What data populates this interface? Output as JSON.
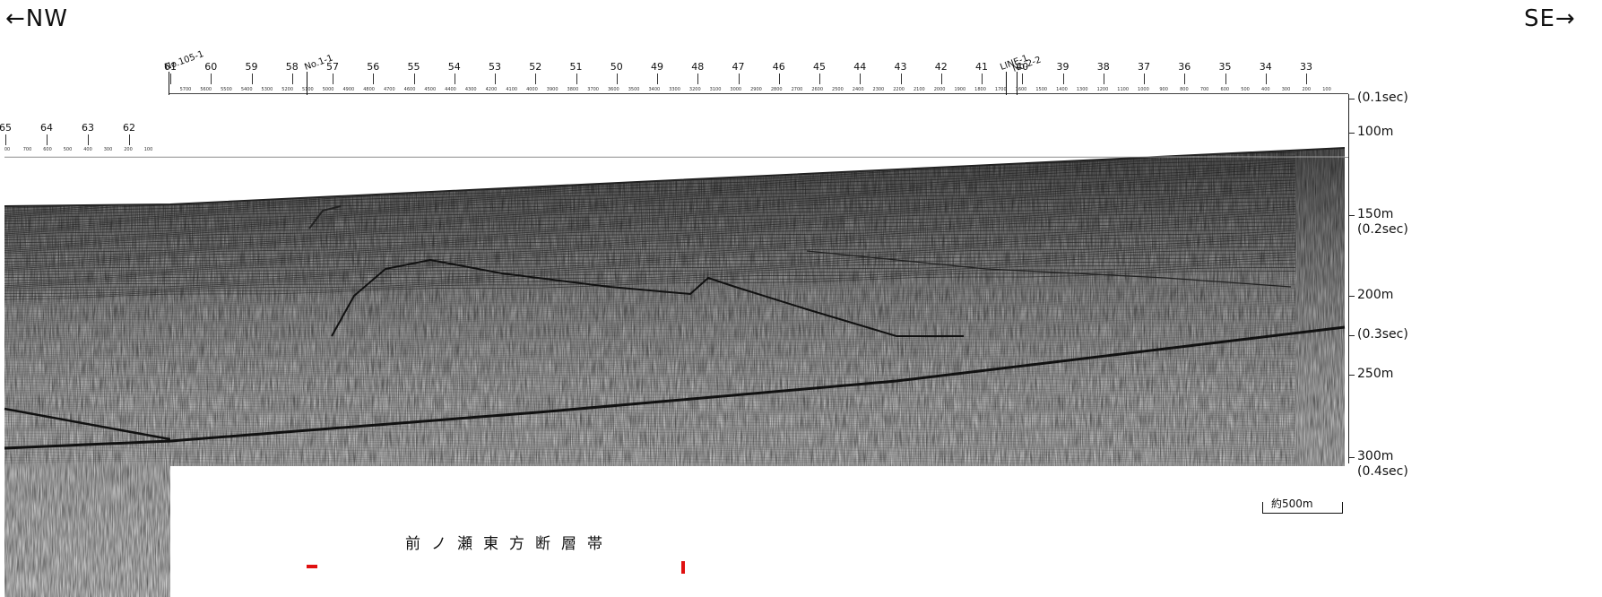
{
  "header": {
    "left_direction": "←NW",
    "right_direction": "SE→"
  },
  "line_ids": [
    "No.105-1",
    "No.1-1",
    "LINE-1",
    "No.2-2"
  ],
  "shotpoints_main": [
    "61",
    "60",
    "59",
    "58",
    "57",
    "56",
    "55",
    "54",
    "53",
    "52",
    "51",
    "50",
    "49",
    "48",
    "47",
    "46",
    "45",
    "44",
    "43",
    "42",
    "41",
    "40",
    "39",
    "38",
    "37",
    "36",
    "35",
    "34",
    "33"
  ],
  "cdp_main": [
    "5700",
    "5600",
    "5500",
    "5400",
    "5300",
    "5200",
    "5100",
    "5000",
    "4900",
    "4800",
    "4700",
    "4600",
    "4500",
    "4400",
    "4300",
    "4200",
    "4100",
    "4000",
    "3900",
    "3800",
    "3700",
    "3600",
    "3500",
    "3400",
    "3300",
    "3200",
    "3100",
    "3000",
    "2900",
    "2800",
    "2700",
    "2600",
    "2500",
    "2400",
    "2300",
    "2200",
    "2100",
    "2000",
    "1900",
    "1800",
    "1700",
    "1600",
    "1500",
    "1400",
    "1300",
    "1200",
    "1100",
    "1000",
    "900",
    "800",
    "700",
    "600",
    "500",
    "400",
    "300",
    "200",
    "100"
  ],
  "shotpoints_left": [
    "65",
    "64",
    "63",
    "62"
  ],
  "cdp_left": [
    "00",
    "700",
    "600",
    "500",
    "400",
    "300",
    "200",
    "100"
  ],
  "depth_axis": [
    {
      "depth": "",
      "twt": "(0.1sec)"
    },
    {
      "depth": "100m",
      "twt": ""
    },
    {
      "depth": "150m",
      "twt": "(0.2sec)"
    },
    {
      "depth": "200m",
      "twt": ""
    },
    {
      "depth": "",
      "twt": "(0.3sec)"
    },
    {
      "depth": "250m",
      "twt": ""
    },
    {
      "depth": "300m",
      "twt": "(0.4sec)"
    }
  ],
  "scale_bar": {
    "label": "約500m"
  },
  "fault_zone_label": "前ノ瀬東方断層帯",
  "colors": {
    "fault_marker": "#e01010",
    "ink": "#111111",
    "paper": "#ffffff"
  }
}
